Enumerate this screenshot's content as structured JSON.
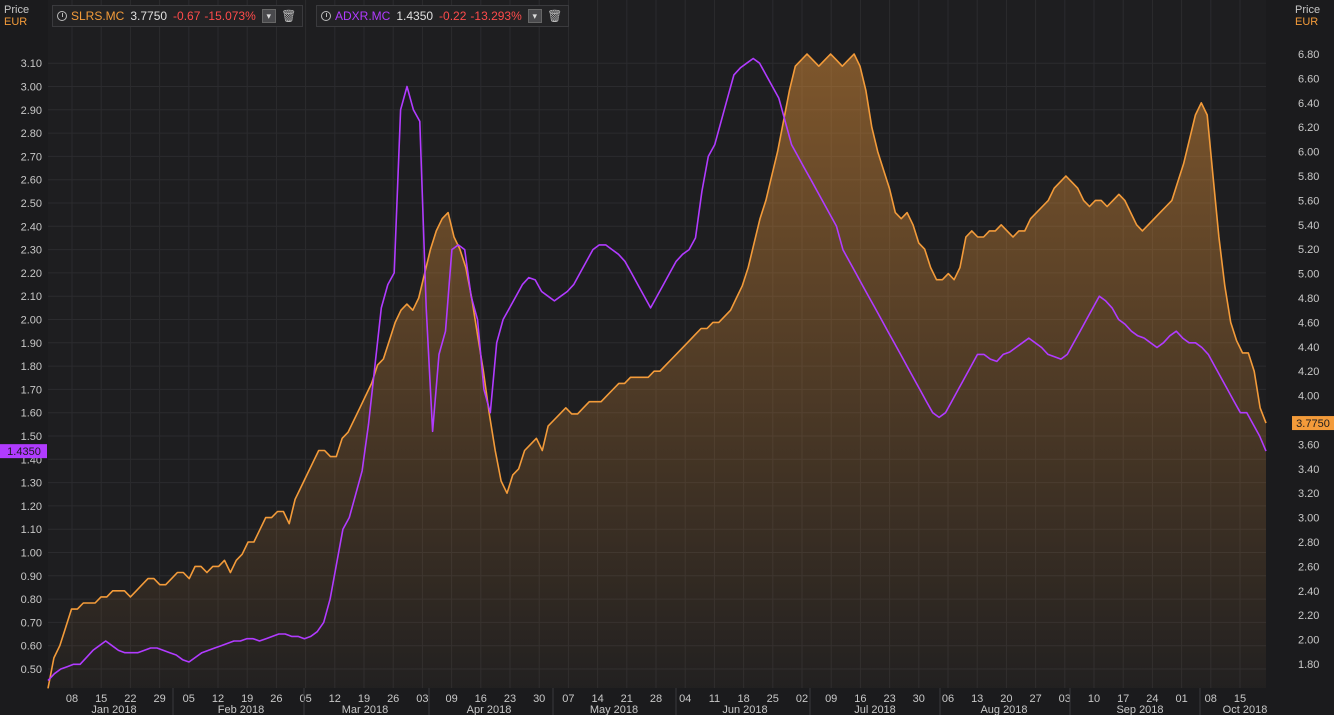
{
  "legend": [
    {
      "symbol": "SLRS.MC",
      "last": "3.7750",
      "change": "-0.67",
      "change_pct": "-15.073%",
      "color": "#f39b3a"
    },
    {
      "symbol": "ADXR.MC",
      "last": "1.4350",
      "change": "-0.22",
      "change_pct": "-13.293%",
      "color": "#b13bff"
    }
  ],
  "left_axis": {
    "title": "Price",
    "unit": "EUR"
  },
  "right_axis": {
    "title": "Price",
    "unit": "EUR"
  },
  "chart_data": {
    "type": "line",
    "x_day_labels": [
      "08",
      "15",
      "22",
      "29",
      "05",
      "12",
      "19",
      "26",
      "05",
      "12",
      "19",
      "26",
      "03",
      "09",
      "16",
      "23",
      "30",
      "07",
      "14",
      "21",
      "28",
      "04",
      "11",
      "18",
      "25",
      "02",
      "09",
      "16",
      "23",
      "30",
      "06",
      "13",
      "20",
      "27",
      "03",
      "10",
      "17",
      "24",
      "01",
      "08",
      "15"
    ],
    "x_month_labels": [
      "Jan 2018",
      "Feb 2018",
      "Mar 2018",
      "Apr 2018",
      "May 2018",
      "Jun 2018",
      "Jul 2018",
      "Aug 2018",
      "Sep 2018",
      "Oct 2018"
    ],
    "left_axis": {
      "ticks": [
        0.5,
        0.6,
        0.7,
        0.8,
        0.9,
        1.0,
        1.1,
        1.2,
        1.3,
        1.4,
        1.5,
        1.6,
        1.7,
        1.8,
        1.9,
        2.0,
        2.1,
        2.2,
        2.3,
        2.4,
        2.5,
        2.6,
        2.7,
        2.8,
        2.9,
        3.0,
        3.1
      ],
      "series": "ADXR.MC"
    },
    "right_axis": {
      "ticks": [
        1.8,
        2.0,
        2.2,
        2.4,
        2.6,
        2.8,
        3.0,
        3.2,
        3.4,
        3.6,
        3.8,
        4.0,
        4.2,
        4.4,
        4.6,
        4.8,
        5.0,
        5.2,
        5.4,
        5.6,
        5.8,
        6.0,
        6.2,
        6.4,
        6.6,
        6.8
      ],
      "series": "SLRS.MC"
    },
    "last_labels": {
      "left": "1.4350",
      "right": "3.7750"
    },
    "series": [
      {
        "name": "SLRS.MC",
        "axis": "right",
        "color": "#f39b3a",
        "area": true,
        "values": [
          1.6,
          1.85,
          1.95,
          2.1,
          2.25,
          2.25,
          2.3,
          2.3,
          2.3,
          2.35,
          2.35,
          2.4,
          2.4,
          2.4,
          2.35,
          2.4,
          2.45,
          2.5,
          2.5,
          2.45,
          2.45,
          2.5,
          2.55,
          2.55,
          2.5,
          2.6,
          2.6,
          2.55,
          2.6,
          2.6,
          2.65,
          2.55,
          2.65,
          2.7,
          2.8,
          2.8,
          2.9,
          3.0,
          3.0,
          3.05,
          3.05,
          2.95,
          3.15,
          3.25,
          3.35,
          3.45,
          3.55,
          3.55,
          3.5,
          3.5,
          3.65,
          3.7,
          3.8,
          3.9,
          4.0,
          4.1,
          4.25,
          4.3,
          4.45,
          4.6,
          4.7,
          4.75,
          4.7,
          4.8,
          5.0,
          5.2,
          5.35,
          5.45,
          5.5,
          5.3,
          5.2,
          5.05,
          4.8,
          4.5,
          4.2,
          3.85,
          3.55,
          3.3,
          3.2,
          3.35,
          3.4,
          3.55,
          3.6,
          3.65,
          3.55,
          3.75,
          3.8,
          3.85,
          3.9,
          3.85,
          3.85,
          3.9,
          3.95,
          3.95,
          3.95,
          4.0,
          4.05,
          4.1,
          4.1,
          4.15,
          4.15,
          4.15,
          4.15,
          4.2,
          4.2,
          4.25,
          4.3,
          4.35,
          4.4,
          4.45,
          4.5,
          4.55,
          4.55,
          4.6,
          4.6,
          4.65,
          4.7,
          4.8,
          4.9,
          5.05,
          5.25,
          5.45,
          5.6,
          5.8,
          6.0,
          6.25,
          6.5,
          6.7,
          6.75,
          6.8,
          6.75,
          6.7,
          6.75,
          6.8,
          6.75,
          6.7,
          6.75,
          6.8,
          6.7,
          6.5,
          6.2,
          6.0,
          5.85,
          5.7,
          5.5,
          5.45,
          5.5,
          5.4,
          5.25,
          5.2,
          5.05,
          4.95,
          4.95,
          5.0,
          4.95,
          5.05,
          5.3,
          5.35,
          5.3,
          5.3,
          5.35,
          5.35,
          5.4,
          5.35,
          5.3,
          5.35,
          5.35,
          5.45,
          5.5,
          5.55,
          5.6,
          5.7,
          5.75,
          5.8,
          5.75,
          5.7,
          5.6,
          5.55,
          5.6,
          5.6,
          5.55,
          5.6,
          5.65,
          5.6,
          5.5,
          5.4,
          5.35,
          5.4,
          5.45,
          5.5,
          5.55,
          5.6,
          5.75,
          5.9,
          6.1,
          6.3,
          6.4,
          6.3,
          5.8,
          5.3,
          4.9,
          4.6,
          4.45,
          4.35,
          4.35,
          4.2,
          3.9,
          3.775
        ]
      },
      {
        "name": "ADXR.MC",
        "axis": "left",
        "color": "#b13bff",
        "area": false,
        "values": [
          0.45,
          0.48,
          0.5,
          0.51,
          0.52,
          0.52,
          0.55,
          0.58,
          0.6,
          0.62,
          0.6,
          0.58,
          0.57,
          0.57,
          0.57,
          0.58,
          0.59,
          0.59,
          0.58,
          0.57,
          0.56,
          0.54,
          0.53,
          0.55,
          0.57,
          0.58,
          0.59,
          0.6,
          0.61,
          0.62,
          0.62,
          0.63,
          0.63,
          0.62,
          0.63,
          0.64,
          0.65,
          0.65,
          0.64,
          0.64,
          0.63,
          0.64,
          0.66,
          0.7,
          0.8,
          0.95,
          1.1,
          1.15,
          1.25,
          1.35,
          1.55,
          1.8,
          2.05,
          2.15,
          2.2,
          2.9,
          3.0,
          2.9,
          2.85,
          2.05,
          1.52,
          1.85,
          1.95,
          2.3,
          2.32,
          2.3,
          2.1,
          2.0,
          1.7,
          1.6,
          1.9,
          2.0,
          2.05,
          2.1,
          2.15,
          2.18,
          2.17,
          2.12,
          2.1,
          2.08,
          2.1,
          2.12,
          2.15,
          2.2,
          2.25,
          2.3,
          2.32,
          2.32,
          2.3,
          2.28,
          2.25,
          2.2,
          2.15,
          2.1,
          2.05,
          2.1,
          2.15,
          2.2,
          2.25,
          2.28,
          2.3,
          2.35,
          2.55,
          2.7,
          2.75,
          2.85,
          2.95,
          3.05,
          3.08,
          3.1,
          3.12,
          3.1,
          3.05,
          3.0,
          2.95,
          2.85,
          2.75,
          2.7,
          2.65,
          2.6,
          2.55,
          2.5,
          2.45,
          2.4,
          2.3,
          2.25,
          2.2,
          2.15,
          2.1,
          2.05,
          2.0,
          1.95,
          1.9,
          1.85,
          1.8,
          1.75,
          1.7,
          1.65,
          1.6,
          1.58,
          1.6,
          1.65,
          1.7,
          1.75,
          1.8,
          1.85,
          1.85,
          1.83,
          1.82,
          1.85,
          1.86,
          1.88,
          1.9,
          1.92,
          1.9,
          1.88,
          1.85,
          1.84,
          1.83,
          1.85,
          1.9,
          1.95,
          2.0,
          2.05,
          2.1,
          2.08,
          2.05,
          2.0,
          1.98,
          1.95,
          1.93,
          1.92,
          1.9,
          1.88,
          1.9,
          1.93,
          1.95,
          1.92,
          1.9,
          1.9,
          1.88,
          1.85,
          1.8,
          1.75,
          1.7,
          1.65,
          1.6,
          1.6,
          1.55,
          1.5,
          1.435
        ]
      }
    ]
  }
}
